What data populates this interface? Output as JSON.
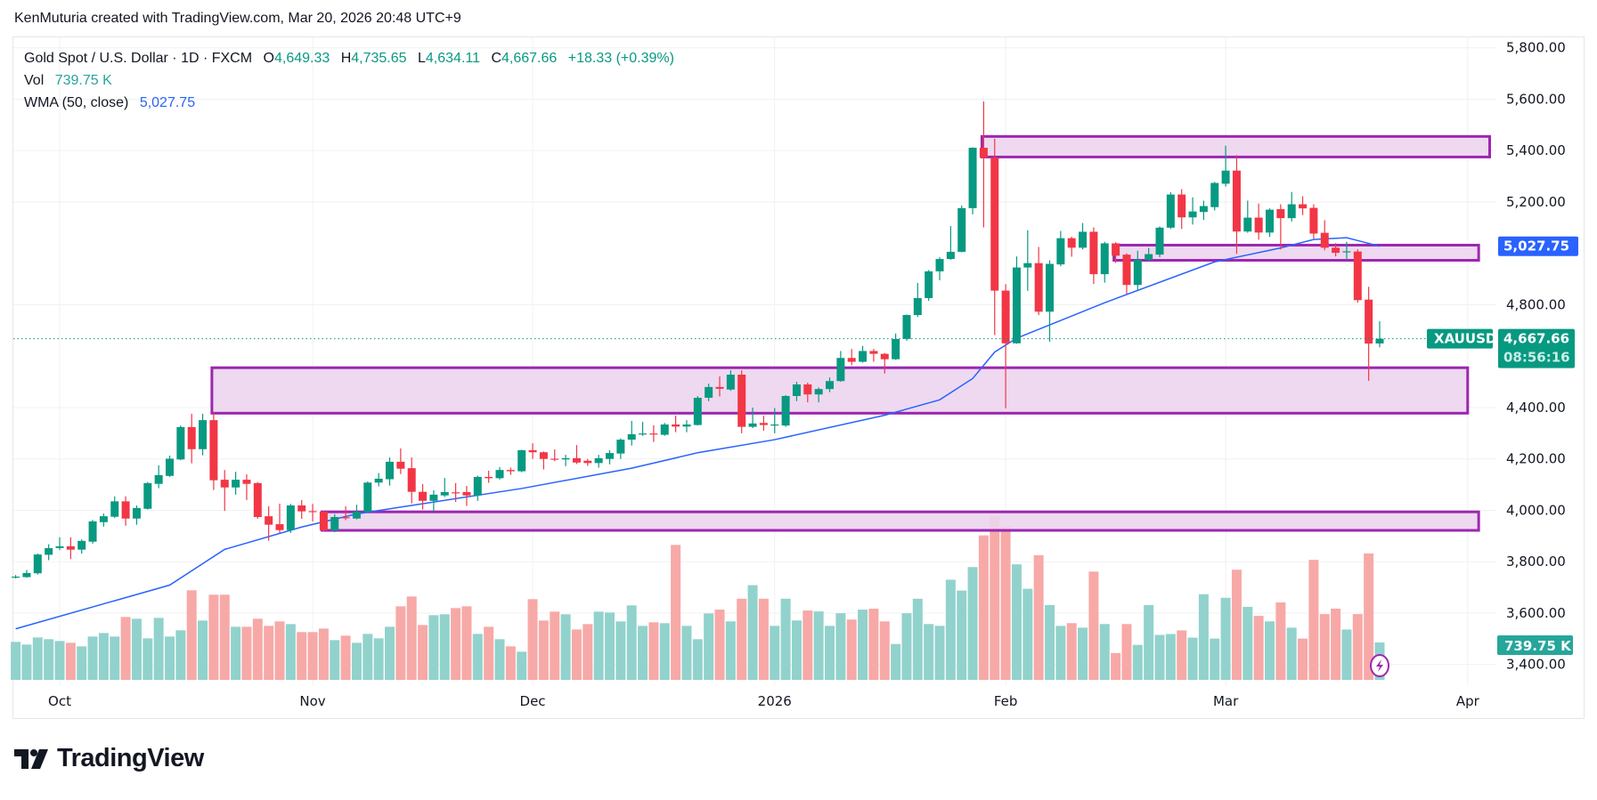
{
  "header": {
    "credit": "KenMuturia created with TradingView.com, Mar 20, 2026 20:48 UTC+9"
  },
  "legend": {
    "title": "Gold Spot / U.S. Dollar · 1D · FXCM",
    "o_label": "O",
    "o_value": "4,649.33",
    "h_label": "H",
    "h_value": "4,735.65",
    "l_label": "L",
    "l_value": "4,634.11",
    "c_label": "C",
    "c_value": "4,667.66",
    "change": "+18.33 (+0.39%)",
    "vol_label": "Vol",
    "vol_value": "739.75 K",
    "wma_label": "WMA (50, close)",
    "wma_value": "5,027.75"
  },
  "badges": {
    "symbol": "XAUUSD",
    "last_price": "4,667.66",
    "countdown": "08:56:16",
    "wma": "5,027.75",
    "volume": "739.75 K"
  },
  "logo": {
    "text": "TradingView"
  },
  "colors": {
    "up": "#089981",
    "down": "#F23645",
    "vol_up": "#92D2CC",
    "vol_down": "#F7A9A7",
    "wma": "#2962FF",
    "zone_fill": "#ECD5EE",
    "zone_border": "#9C27B0"
  },
  "chart_data": {
    "type": "candlestick",
    "symbol": "XAUUSD",
    "interval": "1D",
    "ylim": [
      3400,
      5800
    ],
    "grid": true,
    "price_ticks": [
      5800,
      5600,
      5400,
      5200,
      4800,
      4400,
      4200,
      4000,
      3800,
      3600,
      3400
    ],
    "price_tick_labels": [
      "5,800.00",
      "5,600.00",
      "5,400.00",
      "5,200.00",
      "4,800.00",
      "4,400.00",
      "4,200.00",
      "4,000.00",
      "3,800.00",
      "3,600.00",
      "3,400.00"
    ],
    "time_ticks": [
      {
        "label": "Oct",
        "date": "2025-10-01"
      },
      {
        "label": "Nov",
        "date": "2025-11-03"
      },
      {
        "label": "Dec",
        "date": "2025-12-01"
      },
      {
        "label": "2026",
        "date": "2026-01-02"
      },
      {
        "label": "Feb",
        "date": "2026-02-02"
      },
      {
        "label": "Mar",
        "date": "2026-03-02"
      },
      {
        "label": "Apr",
        "date": "2026-04-01"
      }
    ],
    "columns": [
      "date",
      "open",
      "high",
      "low",
      "close",
      "volume_k"
    ],
    "candles": [
      [
        "2025-09-25",
        3740,
        3748,
        3735,
        3742,
        751
      ],
      [
        "2025-09-26",
        3740,
        3768,
        3738,
        3756,
        698
      ],
      [
        "2025-09-29",
        3755,
        3832,
        3750,
        3828,
        839
      ],
      [
        "2025-09-30",
        3827,
        3868,
        3806,
        3853,
        804
      ],
      [
        "2025-10-01",
        3853,
        3895,
        3845,
        3860,
        769
      ],
      [
        "2025-10-02",
        3860,
        3895,
        3810,
        3847,
        733
      ],
      [
        "2025-10-03",
        3847,
        3887,
        3832,
        3881,
        663
      ],
      [
        "2025-10-06",
        3878,
        3963,
        3870,
        3957,
        857
      ],
      [
        "2025-10-07",
        3954,
        3988,
        3937,
        3977,
        927
      ],
      [
        "2025-10-08",
        3975,
        4054,
        3970,
        4035,
        857
      ],
      [
        "2025-10-09",
        4035,
        4054,
        3940,
        3968,
        1244
      ],
      [
        "2025-10-10",
        3968,
        4019,
        3944,
        4009,
        1209
      ],
      [
        "2025-10-13",
        4006,
        4110,
        4003,
        4106,
        821
      ],
      [
        "2025-10-14",
        4103,
        4175,
        4086,
        4137,
        1226
      ],
      [
        "2025-10-15",
        4134,
        4213,
        4130,
        4201,
        857
      ],
      [
        "2025-10-16",
        4198,
        4330,
        4195,
        4324,
        980
      ],
      [
        "2025-10-17",
        4324,
        4376,
        4183,
        4238,
        1772
      ],
      [
        "2025-10-20",
        4238,
        4376,
        4214,
        4351,
        1173
      ],
      [
        "2025-10-21",
        4351,
        4381,
        4079,
        4117,
        1684
      ],
      [
        "2025-10-22",
        4119,
        4157,
        3998,
        4089,
        1684
      ],
      [
        "2025-10-23",
        4089,
        4150,
        4061,
        4119,
        1050
      ],
      [
        "2025-10-24",
        4119,
        4140,
        4040,
        4103,
        1050
      ],
      [
        "2025-10-27",
        4106,
        4110,
        3967,
        3974,
        1209
      ],
      [
        "2025-10-28",
        3977,
        4016,
        3882,
        3944,
        1068
      ],
      [
        "2025-10-29",
        3946,
        4026,
        3912,
        3923,
        1156
      ],
      [
        "2025-10-30",
        3923,
        4025,
        3912,
        4019,
        1103
      ],
      [
        "2025-10-31",
        4019,
        4040,
        3967,
        3996,
        945
      ],
      [
        "2025-11-03",
        3997,
        4025,
        3957,
        3995,
        945
      ],
      [
        "2025-11-04",
        3995,
        3998,
        3918,
        3922,
        1015
      ],
      [
        "2025-11-05",
        3922,
        3985,
        3915,
        3974,
        786
      ],
      [
        "2025-11-06",
        3973,
        4016,
        3962,
        3972,
        874
      ],
      [
        "2025-11-07",
        3968,
        4022,
        3965,
        3994,
        733
      ],
      [
        "2025-11-10",
        3994,
        4112,
        3990,
        4108,
        909
      ],
      [
        "2025-11-11",
        4108,
        4145,
        4093,
        4123,
        821
      ],
      [
        "2025-11-12",
        4121,
        4206,
        4096,
        4189,
        1050
      ],
      [
        "2025-11-13",
        4189,
        4241,
        4141,
        4162,
        1455
      ],
      [
        "2025-11-14",
        4164,
        4206,
        4027,
        4072,
        1649
      ],
      [
        "2025-11-17",
        4072,
        4102,
        4003,
        4037,
        1085
      ],
      [
        "2025-11-18",
        4037,
        4078,
        3997,
        4061,
        1279
      ],
      [
        "2025-11-19",
        4058,
        4126,
        4052,
        4071,
        1297
      ],
      [
        "2025-11-20",
        4070,
        4106,
        4033,
        4068,
        1420
      ],
      [
        "2025-11-21",
        4071,
        4095,
        4017,
        4058,
        1455
      ],
      [
        "2025-11-24",
        4058,
        4135,
        4037,
        4130,
        909
      ],
      [
        "2025-11-25",
        4130,
        4154,
        4107,
        4125,
        1050
      ],
      [
        "2025-11-26",
        4125,
        4168,
        4120,
        4157,
        804
      ],
      [
        "2025-11-27",
        4157,
        4166,
        4138,
        4152,
        663
      ],
      [
        "2025-11-28",
        4152,
        4236,
        4148,
        4234,
        557
      ],
      [
        "2025-12-01",
        4234,
        4261,
        4200,
        4226,
        1596
      ],
      [
        "2025-12-02",
        4226,
        4229,
        4159,
        4200,
        1173
      ],
      [
        "2025-12-03",
        4201,
        4237,
        4191,
        4200,
        1349
      ],
      [
        "2025-12-04",
        4198,
        4216,
        4172,
        4203,
        1297
      ],
      [
        "2025-12-05",
        4203,
        4254,
        4180,
        4186,
        997
      ],
      [
        "2025-12-08",
        4193,
        4200,
        4173,
        4184,
        1103
      ],
      [
        "2025-12-09",
        4184,
        4216,
        4166,
        4203,
        1349
      ],
      [
        "2025-12-10",
        4200,
        4234,
        4179,
        4223,
        1332
      ],
      [
        "2025-12-11",
        4221,
        4280,
        4200,
        4275,
        1156
      ],
      [
        "2025-12-12",
        4275,
        4348,
        4252,
        4296,
        1473
      ],
      [
        "2025-12-15",
        4296,
        4344,
        4290,
        4299,
        1068
      ],
      [
        "2025-12-16",
        4299,
        4331,
        4266,
        4297,
        1138
      ],
      [
        "2025-12-17",
        4294,
        4340,
        4290,
        4334,
        1121
      ],
      [
        "2025-12-18",
        4334,
        4369,
        4304,
        4326,
        2669
      ],
      [
        "2025-12-19",
        4326,
        4351,
        4304,
        4334,
        1068
      ],
      [
        "2025-12-22",
        4332,
        4445,
        4330,
        4438,
        804
      ],
      [
        "2025-12-23",
        4438,
        4493,
        4425,
        4480,
        1314
      ],
      [
        "2025-12-24",
        4480,
        4521,
        4443,
        4473,
        1390
      ],
      [
        "2025-12-26",
        4470,
        4545,
        4465,
        4528,
        1157
      ],
      [
        "2025-12-29",
        4528,
        4545,
        4300,
        4325,
        1605
      ],
      [
        "2025-12-30",
        4325,
        4400,
        4320,
        4338,
        1873
      ],
      [
        "2025-12-31",
        4340,
        4368,
        4310,
        4332,
        1605
      ],
      [
        "2026-01-02",
        4330,
        4398,
        4300,
        4334,
        1068
      ],
      [
        "2026-01-05",
        4330,
        4448,
        4325,
        4445,
        1605
      ],
      [
        "2026-01-06",
        4445,
        4500,
        4425,
        4490,
        1175
      ],
      [
        "2026-01-07",
        4490,
        4497,
        4420,
        4451,
        1372
      ],
      [
        "2026-01-08",
        4451,
        4478,
        4420,
        4472,
        1354
      ],
      [
        "2026-01-09",
        4472,
        4517,
        4460,
        4503,
        1068
      ],
      [
        "2026-01-12",
        4503,
        4620,
        4500,
        4593,
        1318
      ],
      [
        "2026-01-13",
        4593,
        4628,
        4565,
        4578,
        1193
      ],
      [
        "2026-01-14",
        4578,
        4640,
        4575,
        4620,
        1390
      ],
      [
        "2026-01-15",
        4620,
        4628,
        4578,
        4609,
        1408
      ],
      [
        "2026-01-16",
        4609,
        4612,
        4532,
        4588,
        1157
      ],
      [
        "2026-01-19",
        4588,
        4688,
        4585,
        4667,
        710
      ],
      [
        "2026-01-20",
        4667,
        4762,
        4660,
        4760,
        1318
      ],
      [
        "2026-01-21",
        4760,
        4885,
        4752,
        4826,
        1605
      ],
      [
        "2026-01-22",
        4826,
        4935,
        4815,
        4930,
        1104
      ],
      [
        "2026-01-23",
        4930,
        4985,
        4895,
        4978,
        1068
      ],
      [
        "2026-01-26",
        4978,
        5106,
        4975,
        5006,
        1981
      ],
      [
        "2026-01-27",
        5006,
        5186,
        5004,
        5176,
        1766
      ],
      [
        "2026-01-28",
        5176,
        5413,
        5152,
        5411,
        2231
      ],
      [
        "2026-01-29",
        5411,
        5591,
        5101,
        5372,
        2858
      ],
      [
        "2026-01-30",
        5372,
        5446,
        4682,
        4855,
        3234
      ],
      [
        "2026-02-02",
        4855,
        4880,
        4397,
        4650,
        3037
      ],
      [
        "2026-02-03",
        4650,
        4988,
        4648,
        4945,
        2285
      ],
      [
        "2026-02-04",
        4945,
        5090,
        4854,
        4962,
        1802
      ],
      [
        "2026-02-05",
        4962,
        5025,
        4760,
        4773,
        2464
      ],
      [
        "2026-02-06",
        4773,
        4973,
        4656,
        4959,
        1480
      ],
      [
        "2026-02-09",
        4957,
        5087,
        4950,
        5059,
        1068
      ],
      [
        "2026-02-10",
        5059,
        5065,
        4987,
        5022,
        1122
      ],
      [
        "2026-02-11",
        5022,
        5118,
        5015,
        5084,
        1032
      ],
      [
        "2026-02-12",
        5084,
        5101,
        4881,
        4919,
        2142
      ],
      [
        "2026-02-13",
        4919,
        5045,
        4886,
        5039,
        1104
      ],
      [
        "2026-02-16",
        5039,
        5043,
        4963,
        4991,
        531
      ],
      [
        "2026-02-17",
        4995,
        5000,
        4842,
        4877,
        1104
      ],
      [
        "2026-02-18",
        4877,
        5010,
        4856,
        4975,
        692
      ],
      [
        "2026-02-19",
        4975,
        5021,
        4970,
        4997,
        1480
      ],
      [
        "2026-02-20",
        4995,
        5105,
        4985,
        5100,
        889
      ],
      [
        "2026-02-23",
        5100,
        5238,
        5095,
        5229,
        907
      ],
      [
        "2026-02-24",
        5229,
        5250,
        5095,
        5140,
        978
      ],
      [
        "2026-02-25",
        5140,
        5218,
        5112,
        5163,
        835
      ],
      [
        "2026-02-26",
        5161,
        5205,
        5130,
        5184,
        1694
      ],
      [
        "2026-02-27",
        5180,
        5278,
        5167,
        5274,
        817
      ],
      [
        "2026-03-02",
        5271,
        5419,
        5260,
        5322,
        1623
      ],
      [
        "2026-03-03",
        5322,
        5382,
        4998,
        5085,
        2178
      ],
      [
        "2026-03-04",
        5085,
        5205,
        5080,
        5139,
        1444
      ],
      [
        "2026-03-05",
        5139,
        5194,
        5053,
        5081,
        1265
      ],
      [
        "2026-03-06",
        5081,
        5175,
        5064,
        5170,
        1157
      ],
      [
        "2026-03-09",
        5172,
        5191,
        5015,
        5137,
        1533
      ],
      [
        "2026-03-10",
        5137,
        5239,
        5124,
        5191,
        1032
      ],
      [
        "2026-03-11",
        5191,
        5222,
        5149,
        5175,
        817
      ],
      [
        "2026-03-12",
        5177,
        5191,
        5057,
        5077,
        2374
      ],
      [
        "2026-03-13",
        5080,
        5129,
        5012,
        5022,
        1301
      ],
      [
        "2026-03-16",
        5022,
        5040,
        4988,
        5002,
        1408
      ],
      [
        "2026-03-17",
        5006,
        5045,
        4975,
        5008,
        996
      ],
      [
        "2026-03-18",
        5007,
        5016,
        4808,
        4818,
        1301
      ],
      [
        "2026-03-19",
        4820,
        4870,
        4504,
        4649,
        2500
      ],
      [
        "2026-03-20",
        4649.33,
        4735.65,
        4634.11,
        4667.66,
        739.75
      ]
    ],
    "wma_50": [
      [
        "2025-09-25",
        3539
      ],
      [
        "2025-10-15",
        3709
      ],
      [
        "2025-10-22",
        3848
      ],
      [
        "2025-10-31",
        3935
      ],
      [
        "2025-11-07",
        3986
      ],
      [
        "2025-11-28",
        4085
      ],
      [
        "2025-12-12",
        4164
      ],
      [
        "2025-12-22",
        4224
      ],
      [
        "2026-01-02",
        4275
      ],
      [
        "2026-01-16",
        4370
      ],
      [
        "2026-01-23",
        4430
      ],
      [
        "2026-01-28",
        4513
      ],
      [
        "2026-01-30",
        4616
      ],
      [
        "2026-02-03",
        4670
      ],
      [
        "2026-02-13",
        4808
      ],
      [
        "2026-02-27",
        4967
      ],
      [
        "2026-03-09",
        5021
      ],
      [
        "2026-03-12",
        5054
      ],
      [
        "2026-03-17",
        5061
      ],
      [
        "2026-03-20",
        5027.75
      ]
    ],
    "zones": [
      {
        "start": "2026-01-29",
        "end": "2026-04-03",
        "top": 5455,
        "bottom": 5375
      },
      {
        "start": "2026-02-16",
        "end": "2026-04-02",
        "top": 5032,
        "bottom": 4973
      },
      {
        "start": "2025-10-21",
        "end": "2026-04-01",
        "top": 4555,
        "bottom": 4378
      },
      {
        "start": "2025-11-04",
        "end": "2026-04-02",
        "top": 3994,
        "bottom": 3922
      }
    ],
    "last_price": 4667.66,
    "wma_last": 5027.75
  }
}
